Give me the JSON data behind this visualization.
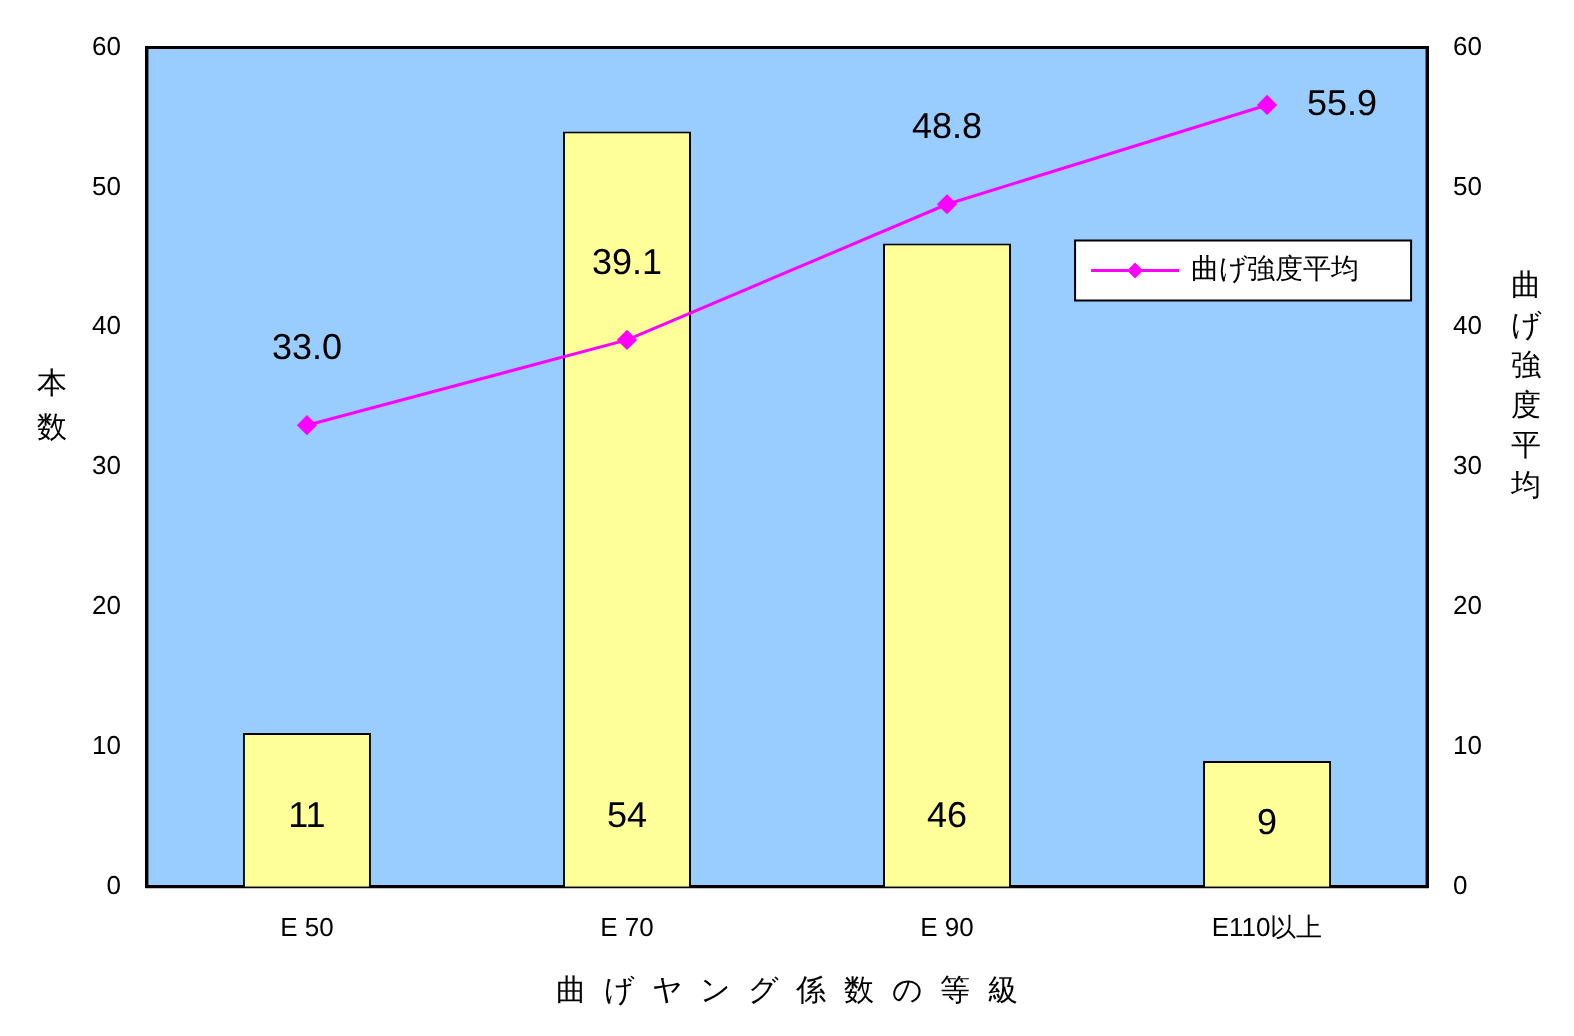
{
  "chart_data": {
    "type": "bar",
    "categories": [
      "E 50",
      "E 70",
      "E 90",
      "E110以上"
    ],
    "series": [
      {
        "color": "#ffff99",
        "values": [
          11,
          54,
          46,
          9
        ]
      },
      {
        "type": "line",
        "name": "曲げ強度平均",
        "color": "#ff00ff",
        "values": [
          33.0,
          39.1,
          48.8,
          55.9
        ],
        "value_labels": [
          "33.0",
          "39.1",
          "48.8",
          "55.9"
        ],
        "axis": "y2"
      }
    ],
    "data_labels": true,
    "xlabel": "曲げヤング係数の等級",
    "ylabel": "本数",
    "y2label": "曲げ強度平均",
    "ylim": [
      0,
      60
    ],
    "yticks": [
      0,
      10,
      20,
      30,
      40,
      50,
      60
    ],
    "y2lim": [
      0,
      60
    ],
    "y2ticks": [
      0,
      10,
      20,
      30,
      40,
      50,
      60
    ],
    "grid": false,
    "legend": "right",
    "marker": "diamond",
    "line_style": "solid"
  }
}
